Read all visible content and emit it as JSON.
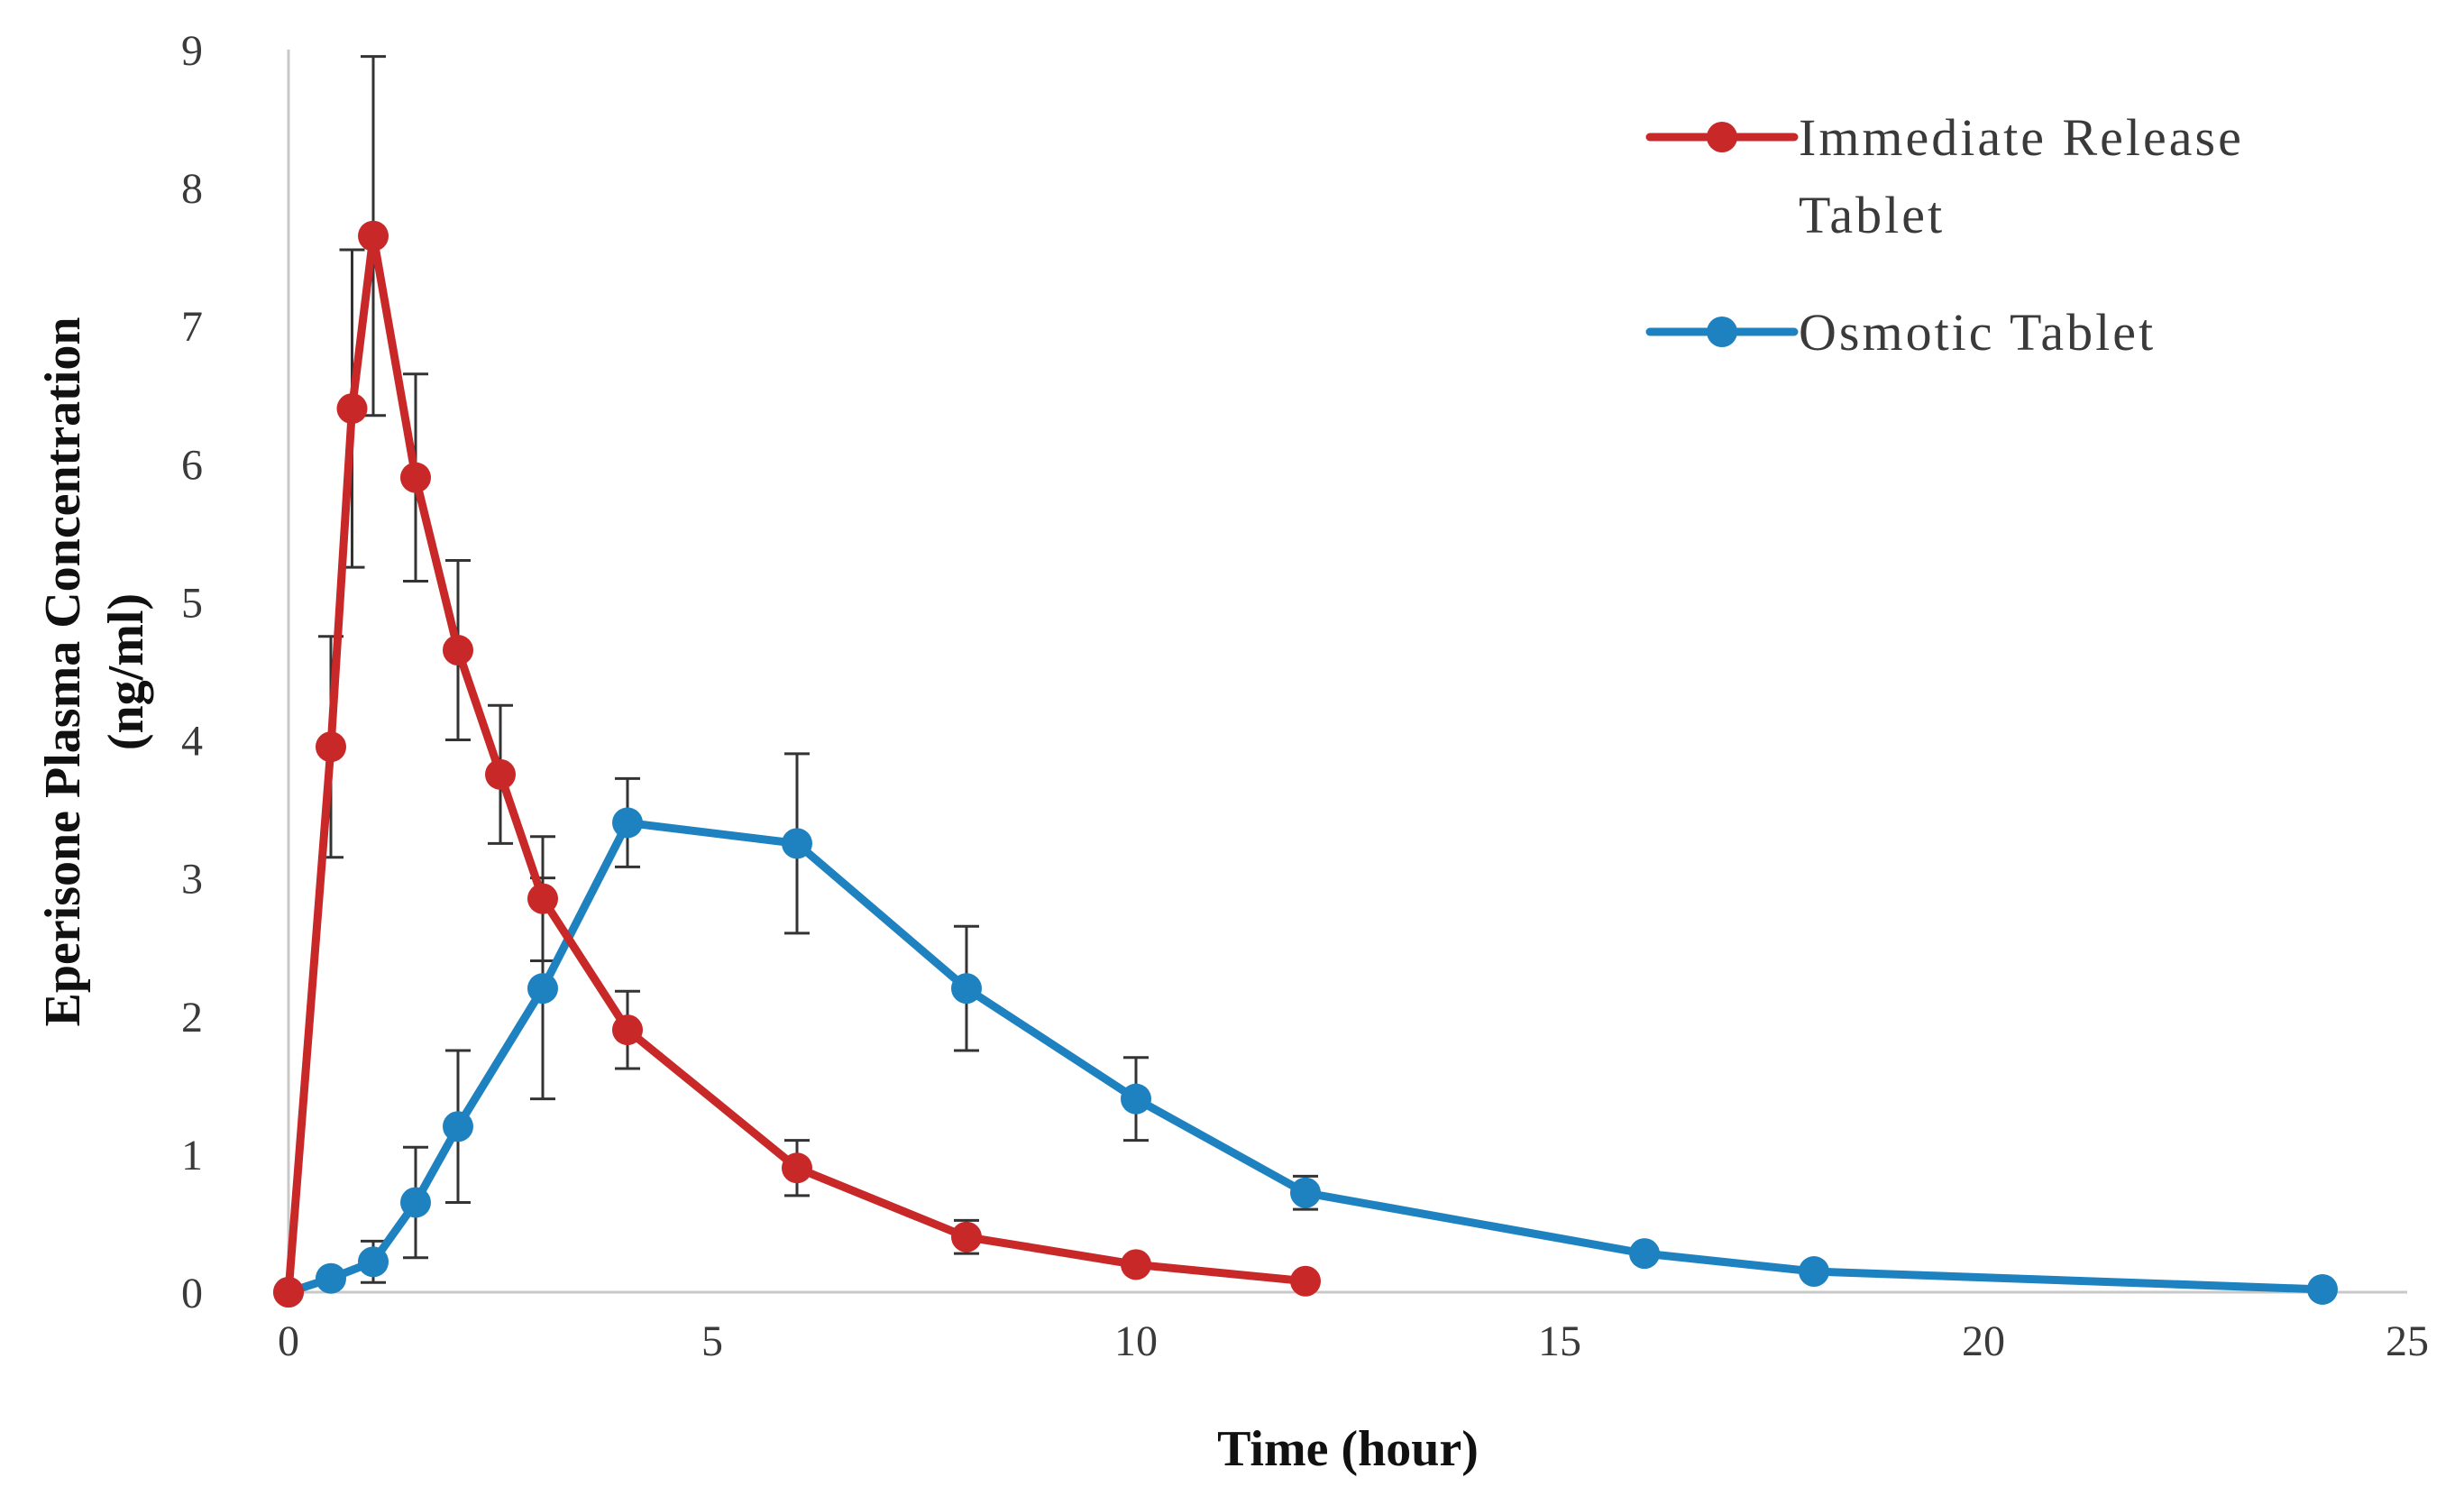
{
  "chart_data": {
    "type": "line",
    "title": "",
    "xlabel": "Time (hour)",
    "ylabel_line1": "Eperisone Plasma Concentration",
    "ylabel_line2": "(ng/ml)",
    "xlim": [
      0,
      25
    ],
    "ylim": [
      0,
      9
    ],
    "x_ticks": [
      0,
      5,
      10,
      15,
      20,
      25
    ],
    "y_ticks": [
      0,
      1,
      2,
      3,
      4,
      5,
      6,
      7,
      8,
      9
    ],
    "grid": false,
    "legend_position": "top-right",
    "series": [
      {
        "name": "Immediate Release Tablet",
        "legend_lines": [
          "Immediate Release",
          "Tablet"
        ],
        "color": "#c82828",
        "x": [
          0,
          0.5,
          0.75,
          1,
          1.5,
          2,
          2.5,
          3,
          4,
          6,
          8,
          10,
          12
        ],
        "values": [
          0,
          3.95,
          6.4,
          7.65,
          5.9,
          4.65,
          3.75,
          2.85,
          1.9,
          0.9,
          0.4,
          0.2,
          0.08
        ],
        "error": [
          0,
          0.8,
          1.15,
          1.3,
          0.75,
          0.65,
          0.5,
          0.45,
          0.28,
          0.2,
          0.12,
          0.05,
          0.02
        ]
      },
      {
        "name": "Osmotic Tablet",
        "legend_lines": [
          "Osmotic Tablet"
        ],
        "color": "#1f82c0",
        "x": [
          0,
          0.5,
          1,
          1.5,
          2,
          3,
          4,
          6,
          8,
          10,
          12,
          16,
          18,
          24
        ],
        "values": [
          0,
          0.1,
          0.22,
          0.65,
          1.2,
          2.2,
          3.4,
          3.25,
          2.2,
          1.4,
          0.72,
          0.28,
          0.15,
          0.02
        ],
        "error": [
          0,
          0.05,
          0.15,
          0.4,
          0.55,
          0.8,
          0.32,
          0.65,
          0.45,
          0.3,
          0.12,
          0.05,
          0.04,
          0.02
        ]
      }
    ]
  }
}
